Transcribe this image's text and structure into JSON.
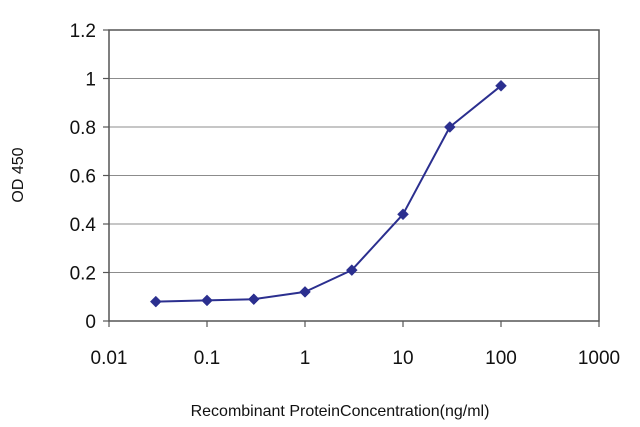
{
  "chart_data": {
    "type": "line",
    "xlabel": "Recombinant ProteinConcentration(ng/ml)",
    "ylabel": "OD 450",
    "x_scale": "log",
    "xlim": [
      0.01,
      1000
    ],
    "ylim": [
      0,
      1.2
    ],
    "x_ticks": [
      "0.01",
      "0.1",
      "1",
      "10",
      "100",
      "1000"
    ],
    "y_ticks": [
      "0",
      "0.2",
      "0.4",
      "0.6",
      "0.8",
      "1",
      "1.2"
    ],
    "grid": {
      "horizontal": true,
      "vertical": false
    },
    "series": [
      {
        "color": "#2b2f8f",
        "x": [
          0.03,
          0.1,
          0.3,
          1,
          3,
          10,
          30,
          100
        ],
        "y": [
          0.08,
          0.085,
          0.09,
          0.12,
          0.21,
          0.44,
          0.8,
          0.97
        ]
      }
    ]
  }
}
